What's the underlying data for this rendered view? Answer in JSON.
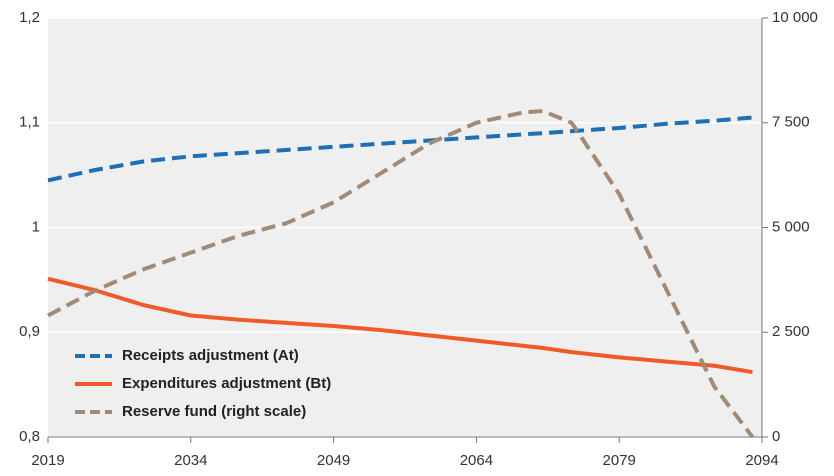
{
  "chart_data": {
    "type": "line",
    "x": [
      2019,
      2024,
      2029,
      2034,
      2039,
      2044,
      2049,
      2054,
      2059,
      2064,
      2069,
      2071,
      2074,
      2079,
      2084,
      2089,
      2093
    ],
    "series": [
      {
        "name": "Receipts adjustment (At)",
        "color": "#1f6fb5",
        "dash": "dashed",
        "values": [
          1.045,
          1.055,
          1.063,
          1.068,
          1.071,
          1.074,
          1.077,
          1.08,
          1.083,
          1.086,
          1.089,
          1.09,
          1.092,
          1.095,
          1.099,
          1.102,
          1.105
        ]
      },
      {
        "name": "Expenditures adjustment (Bt)",
        "color": "#f05a28",
        "dash": "solid",
        "values": [
          0.951,
          0.94,
          0.926,
          0.916,
          0.912,
          0.909,
          0.906,
          0.902,
          0.897,
          0.892,
          0.887,
          0.885,
          0.881,
          0.876,
          0.872,
          0.868,
          0.862
        ]
      },
      {
        "name": "Reserve fund (right scale)",
        "color": "#a08a78",
        "dash": "dashed",
        "axis": "y2",
        "values": [
          2900,
          3500,
          4000,
          4400,
          4800,
          5100,
          5600,
          6300,
          7000,
          7500,
          7750,
          7780,
          7500,
          5800,
          3500,
          1200,
          0
        ]
      }
    ],
    "xlim": [
      2019,
      2094
    ],
    "xticks": [
      2019,
      2034,
      2049,
      2064,
      2079,
      2094
    ],
    "ylim": [
      0.8,
      1.2
    ],
    "yticks": [
      {
        "value": 0.8,
        "label": "0,8"
      },
      {
        "value": 0.9,
        "label": "0,9"
      },
      1,
      {
        "value": 1.1,
        "label": "1,1"
      },
      {
        "value": 1.2,
        "label": "1,2"
      }
    ],
    "y2lim": [
      0,
      10000
    ],
    "y2ticks": [
      0,
      {
        "value": 2500,
        "label": "2 500"
      },
      {
        "value": 5000,
        "label": "5 000"
      },
      {
        "value": 7500,
        "label": "7 500"
      },
      {
        "value": 10000,
        "label": "10 000"
      }
    ],
    "grid": true,
    "legend": "lower left"
  }
}
